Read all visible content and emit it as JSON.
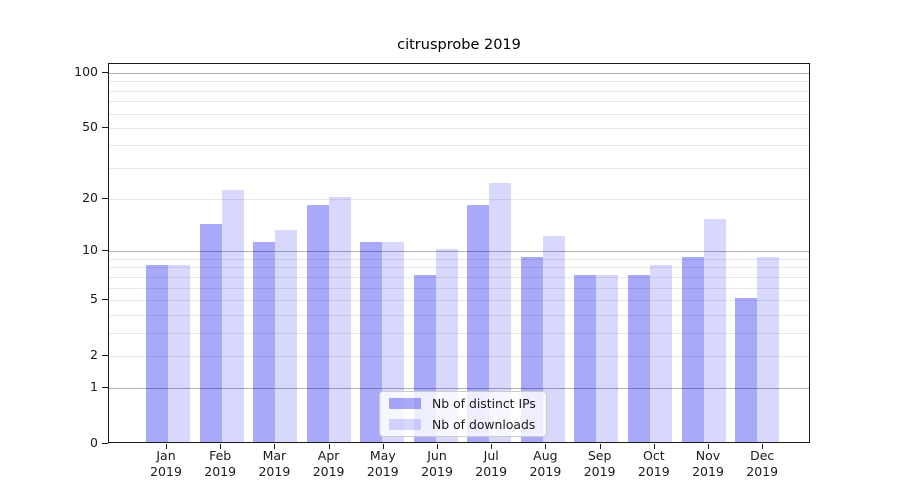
{
  "chart_data": {
    "type": "bar",
    "title": "citrusprobe 2019",
    "categories": [
      "Jan",
      "Feb",
      "Mar",
      "Apr",
      "May",
      "Jun",
      "Jul",
      "Aug",
      "Sep",
      "Oct",
      "Nov",
      "Dec"
    ],
    "category_year": "2019",
    "series": [
      {
        "name": "Nb of distinct IPs",
        "color": "rgba(10,10,240,0.35)",
        "values": [
          8,
          14,
          11,
          18,
          11,
          7,
          18,
          9,
          7,
          7,
          9,
          5
        ]
      },
      {
        "name": "Nb of downloads",
        "color": "rgba(10,10,240,0.16)",
        "values": [
          8,
          22,
          13,
          20,
          11,
          10,
          24,
          12,
          7,
          8,
          15,
          9
        ]
      }
    ],
    "yscale": "log1p",
    "ylim": [
      0,
      112
    ],
    "ytick_values": [
      0,
      1,
      2,
      5,
      10,
      20,
      50,
      100
    ],
    "ytick_labels": [
      "0",
      "1",
      "2",
      "5",
      "10",
      "20",
      "50",
      "100"
    ],
    "ymajor_gridlines": [
      1,
      10,
      100
    ],
    "yminor_gridlines": [
      2,
      3,
      4,
      5,
      6,
      7,
      8,
      9,
      20,
      30,
      40,
      50,
      60,
      70,
      80,
      90
    ],
    "grid": true,
    "legend_position": "lower center",
    "colors": {
      "bar_dark": "rgba(10,10,240,0.35)",
      "bar_light": "rgba(10,10,240,0.16)",
      "major_grid": "#b0b0b0",
      "minor_grid": "#e9e9e9",
      "spine": "#1a1a1a",
      "text": "#1a1a1a"
    }
  }
}
